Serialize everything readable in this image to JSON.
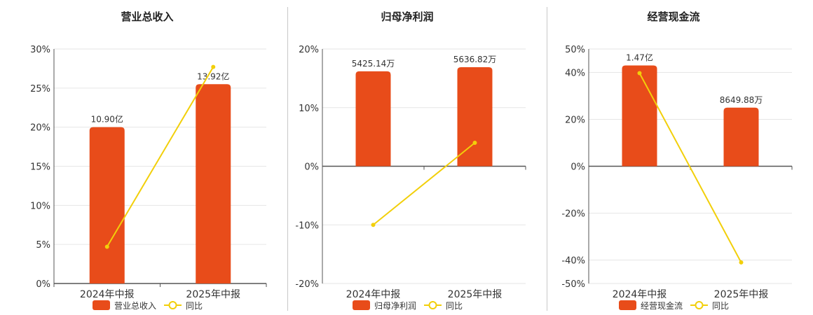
{
  "colors": {
    "bar": "#e84c1a",
    "line": "#f2cf0a",
    "grid": "#e6e6e6",
    "axis": "#555555"
  },
  "chart_data": [
    {
      "type": "bar",
      "title": "营业总收入",
      "categories": [
        "2024年中报",
        "2025年中报"
      ],
      "series": [
        {
          "name": "营业总收入",
          "type": "bar",
          "values": [
            20.0,
            25.5
          ],
          "labels": [
            "10.90亿",
            "13.92亿"
          ]
        },
        {
          "name": "同比",
          "type": "line",
          "values": [
            4.7,
            27.7
          ]
        }
      ],
      "yticks": [
        "0%",
        "5%",
        "10%",
        "15%",
        "20%",
        "25%",
        "30%"
      ],
      "ylim": [
        0,
        30
      ],
      "grid": true,
      "legend": "bottom"
    },
    {
      "type": "bar",
      "title": "归母净利润",
      "categories": [
        "2024年中报",
        "2025年中报"
      ],
      "series": [
        {
          "name": "归母净利润",
          "type": "bar",
          "values": [
            16.2,
            16.9
          ],
          "labels": [
            "5425.14万",
            "5636.82万"
          ]
        },
        {
          "name": "同比",
          "type": "line",
          "values": [
            -10.0,
            4.0
          ]
        }
      ],
      "yticks": [
        "-20%",
        "-10%",
        "0%",
        "10%",
        "20%"
      ],
      "ylim": [
        -20,
        20
      ],
      "grid": true,
      "legend": "bottom"
    },
    {
      "type": "bar",
      "title": "经营现金流",
      "categories": [
        "2024年中报",
        "2025年中报"
      ],
      "series": [
        {
          "name": "经营现金流",
          "type": "bar",
          "values": [
            43.0,
            25.0
          ],
          "labels": [
            "1.47亿",
            "8649.88万"
          ]
        },
        {
          "name": "同比",
          "type": "line",
          "values": [
            39.7,
            -41.0
          ]
        }
      ],
      "yticks": [
        "-50%",
        "-40%",
        "-20%",
        "0%",
        "20%",
        "40%",
        "50%"
      ],
      "ylim": [
        -50,
        50
      ],
      "grid": true,
      "legend": "bottom"
    }
  ]
}
